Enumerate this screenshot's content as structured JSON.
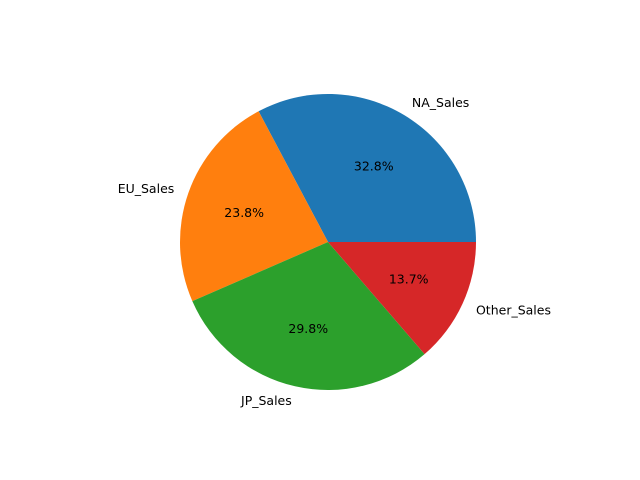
{
  "chart_data": {
    "type": "pie",
    "labels": [
      "NA_Sales",
      "EU_Sales",
      "JP_Sales",
      "Other_Sales"
    ],
    "values": [
      32.8,
      23.8,
      29.8,
      13.7
    ],
    "percent_labels": [
      "32.8%",
      "23.8%",
      "29.8%",
      "13.7%"
    ],
    "colors": [
      "#1f77b4",
      "#ff7f0e",
      "#2ca02c",
      "#d62728"
    ],
    "start_angle_deg": 0,
    "direction": "counterclockwise"
  }
}
